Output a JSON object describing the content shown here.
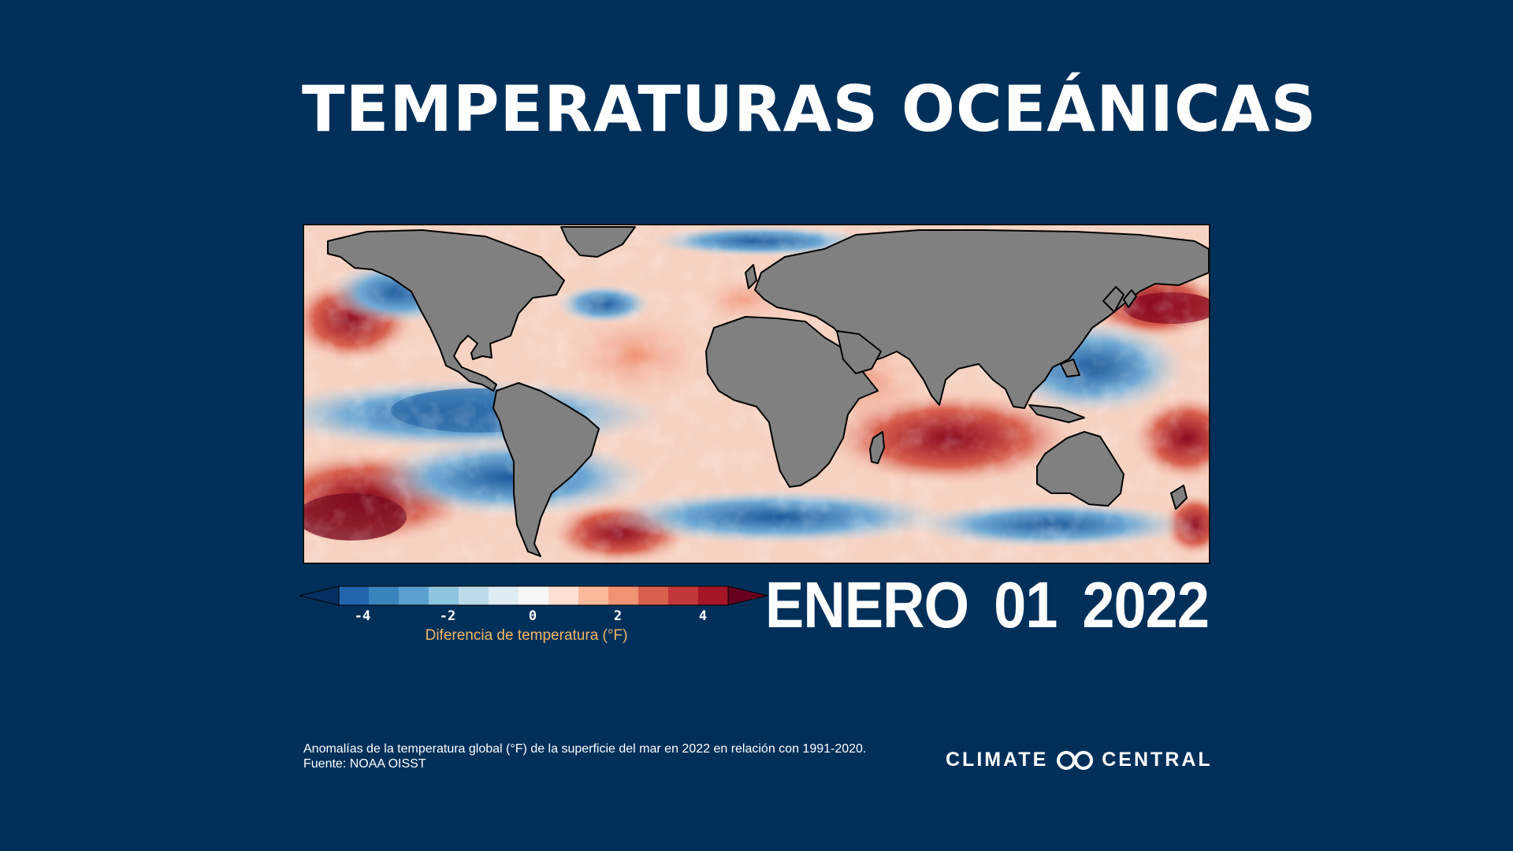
{
  "title": "TEMPERATURAS OCEÁNICAS",
  "map": {
    "region": "global ocean",
    "land_color": "#808080",
    "note": "sea surface temperature anomaly map"
  },
  "colorbar": {
    "ticks": [
      "-4",
      "-2",
      "0",
      "2",
      "4"
    ],
    "label": "Diferencia de temperatura (°F)",
    "colors": [
      "#053061",
      "#2166ac",
      "#3a84bd",
      "#5aa1cf",
      "#8ec4de",
      "#bcdbea",
      "#e0ecf4",
      "#f7f7f7",
      "#fde0d3",
      "#fbb99c",
      "#f09274",
      "#d8604f",
      "#c13639",
      "#a41525",
      "#67001f"
    ]
  },
  "date": {
    "month": "ENERO",
    "day": "01",
    "year": "2022"
  },
  "caption": {
    "line1": "Anomalías de la temperatura global (°F) de la superficie del mar en 2022 en relación con 1991-2020.",
    "line2": "Fuente: NOAA OISST"
  },
  "brand": {
    "left": "CLIMATE",
    "right": "CENTRAL",
    "logo_icon": "climate-central-logo-icon"
  }
}
